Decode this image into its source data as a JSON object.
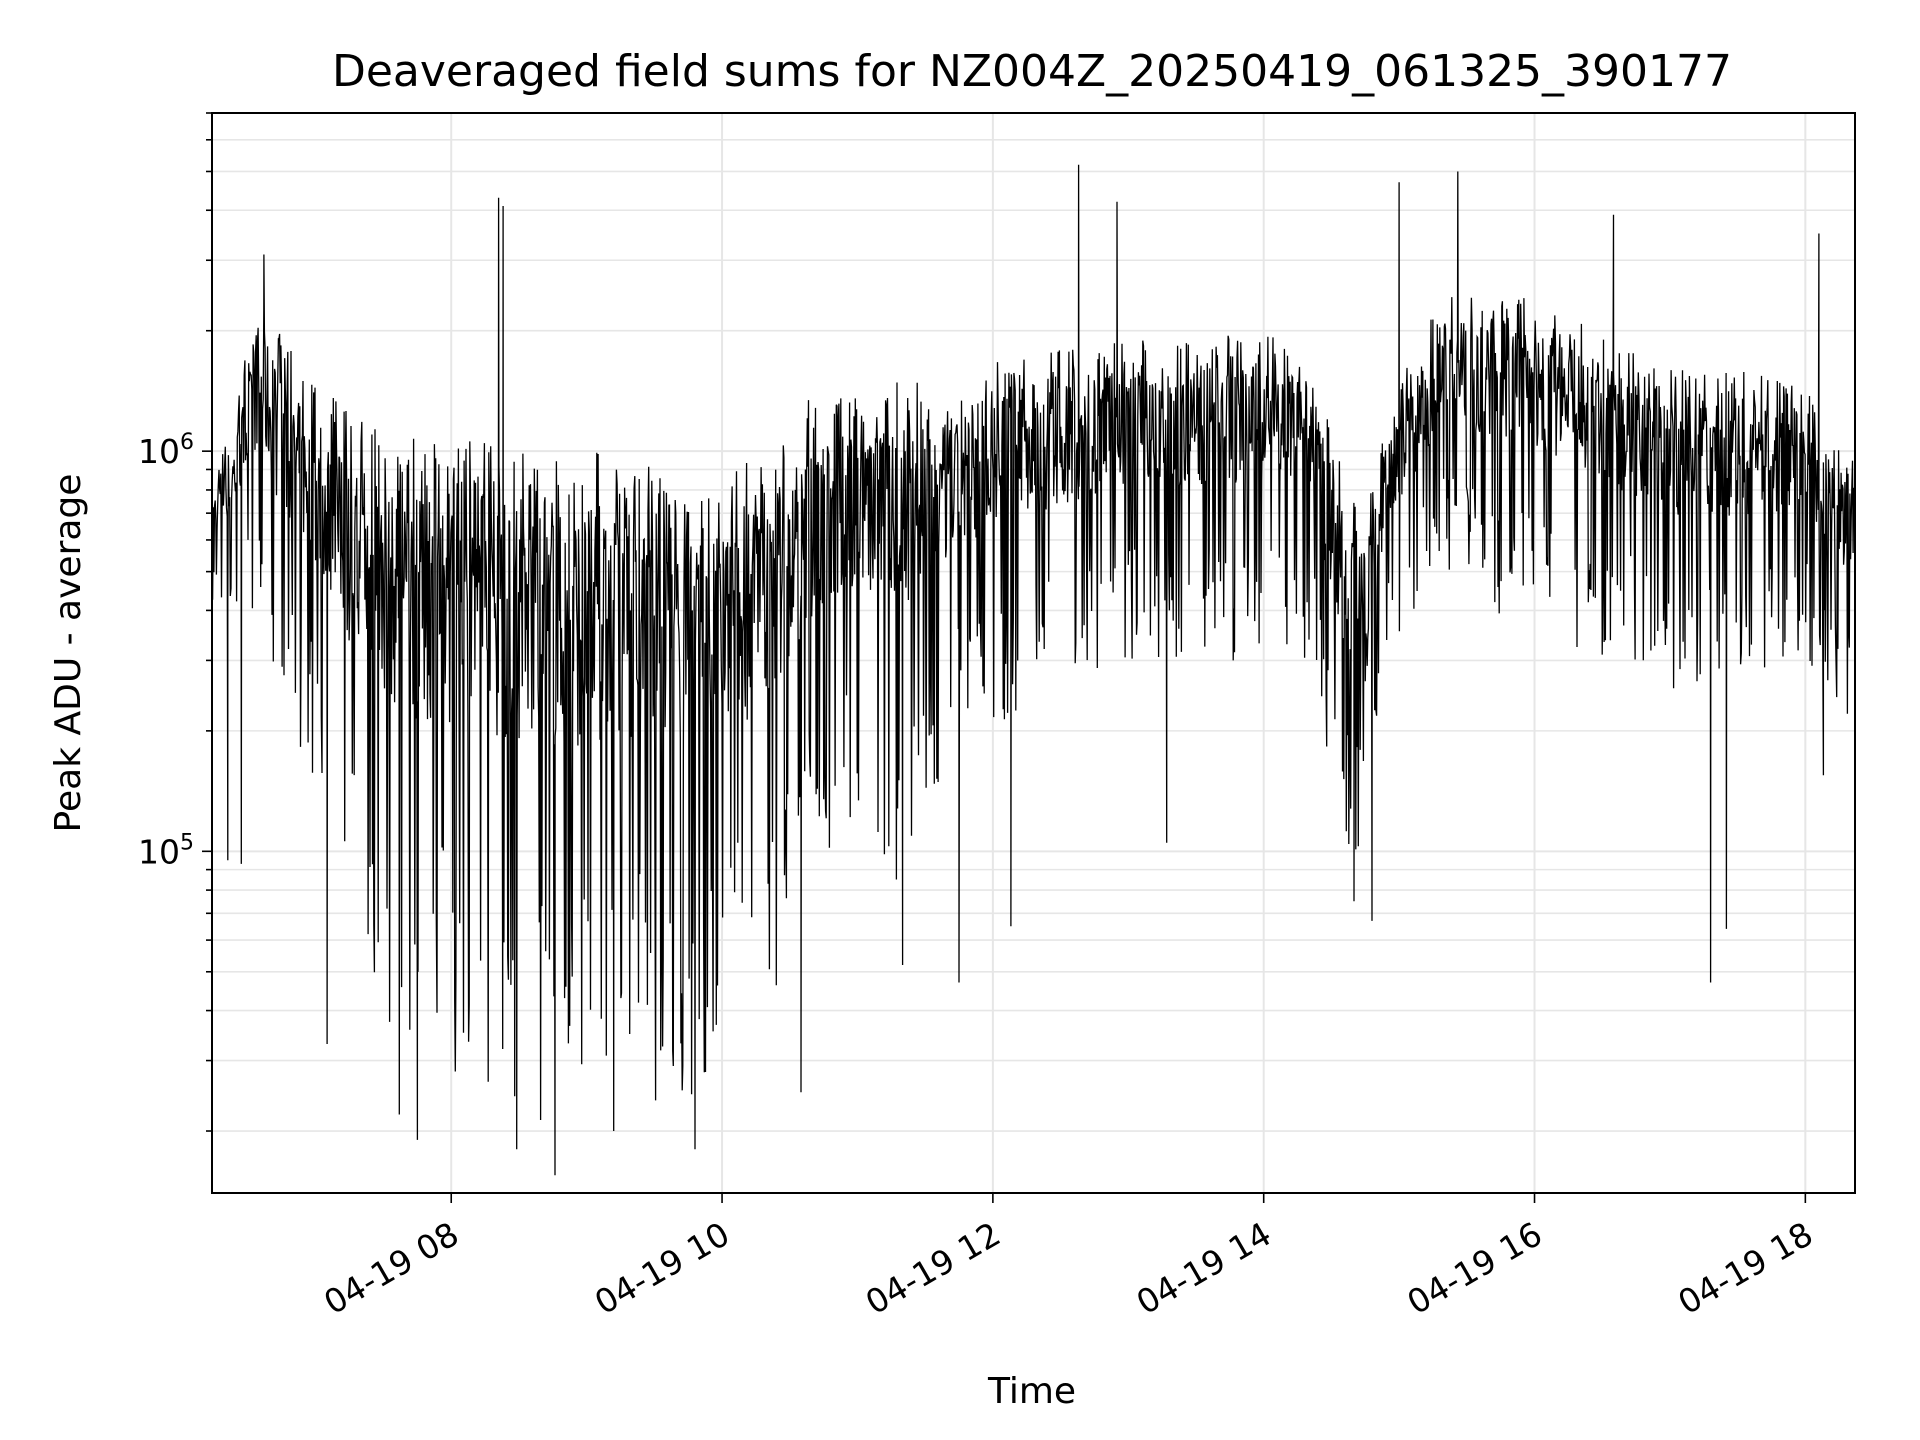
{
  "chart_data": {
    "type": "line",
    "title": "Deaveraged field sums for NZ004Z_20250419_061325_390177",
    "xlabel": "Time",
    "ylabel": "Peak ADU - average",
    "x_range": [
      "2025-04-19 06:14",
      "2025-04-19 18:22"
    ],
    "y_scale": "log",
    "ylim": [
      14000,
      7000000
    ],
    "grid": true,
    "line_color": "#000000",
    "x_ticks": [
      {
        "value": "2025-04-19 08:00",
        "label": "04-19 08"
      },
      {
        "value": "2025-04-19 10:00",
        "label": "04-19 10"
      },
      {
        "value": "2025-04-19 12:00",
        "label": "04-19 12"
      },
      {
        "value": "2025-04-19 14:00",
        "label": "04-19 14"
      },
      {
        "value": "2025-04-19 16:00",
        "label": "04-19 16"
      },
      {
        "value": "2025-04-19 18:00",
        "label": "04-19 18"
      }
    ],
    "y_ticks": [
      {
        "value": 100000,
        "base": "10",
        "exp": "5"
      },
      {
        "value": 1000000,
        "base": "10",
        "exp": "6"
      }
    ],
    "series": [
      {
        "envelope": [
          {
            "t": "2025-04-19 06:15",
            "upper": 900000,
            "lower": 400000
          },
          {
            "t": "2025-04-19 06:25",
            "upper": 1300000,
            "lower": 350000
          },
          {
            "t": "2025-04-19 06:35",
            "upper": 2700000,
            "lower": 350000
          },
          {
            "t": "2025-04-19 06:45",
            "upper": 1900000,
            "lower": 200000
          },
          {
            "t": "2025-04-19 07:00",
            "upper": 1500000,
            "lower": 150000
          },
          {
            "t": "2025-04-19 07:20",
            "upper": 1200000,
            "lower": 50000
          },
          {
            "t": "2025-04-19 07:40",
            "upper": 1100000,
            "lower": 30000
          },
          {
            "t": "2025-04-19 08:00",
            "upper": 1100000,
            "lower": 28000
          },
          {
            "t": "2025-04-19 08:20",
            "upper": 1050000,
            "lower": 25000
          },
          {
            "t": "2025-04-19 08:40",
            "upper": 1050000,
            "lower": 20000
          },
          {
            "t": "2025-04-19 09:00",
            "upper": 1100000,
            "lower": 22000
          },
          {
            "t": "2025-04-19 09:20",
            "upper": 1000000,
            "lower": 25000
          },
          {
            "t": "2025-04-19 09:40",
            "upper": 800000,
            "lower": 22000
          },
          {
            "t": "2025-04-19 10:00",
            "upper": 900000,
            "lower": 30000
          },
          {
            "t": "2025-04-19 10:20",
            "upper": 1000000,
            "lower": 40000
          },
          {
            "t": "2025-04-19 10:40",
            "upper": 1400000,
            "lower": 80000
          },
          {
            "t": "2025-04-19 11:00",
            "upper": 1400000,
            "lower": 120000
          },
          {
            "t": "2025-04-19 11:20",
            "upper": 1500000,
            "lower": 70000
          },
          {
            "t": "2025-04-19 11:40",
            "upper": 1500000,
            "lower": 150000
          },
          {
            "t": "2025-04-19 12:00",
            "upper": 1700000,
            "lower": 200000
          },
          {
            "t": "2025-04-19 12:30",
            "upper": 1800000,
            "lower": 250000
          },
          {
            "t": "2025-04-19 13:00",
            "upper": 1900000,
            "lower": 300000
          },
          {
            "t": "2025-04-19 13:30",
            "upper": 1900000,
            "lower": 300000
          },
          {
            "t": "2025-04-19 14:00",
            "upper": 2000000,
            "lower": 300000
          },
          {
            "t": "2025-04-19 14:20",
            "upper": 1800000,
            "lower": 300000
          },
          {
            "t": "2025-04-19 14:35",
            "upper": 900000,
            "lower": 100000
          },
          {
            "t": "2025-04-19 14:45",
            "upper": 700000,
            "lower": 80000
          },
          {
            "t": "2025-04-19 14:55",
            "upper": 1300000,
            "lower": 300000
          },
          {
            "t": "2025-04-19 15:20",
            "upper": 2500000,
            "lower": 500000
          },
          {
            "t": "2025-04-19 15:40",
            "upper": 2500000,
            "lower": 400000
          },
          {
            "t": "2025-04-19 16:00",
            "upper": 2400000,
            "lower": 350000
          },
          {
            "t": "2025-04-19 16:30",
            "upper": 2000000,
            "lower": 300000
          },
          {
            "t": "2025-04-19 17:00",
            "upper": 1600000,
            "lower": 250000
          },
          {
            "t": "2025-04-19 17:30",
            "upper": 1600000,
            "lower": 250000
          },
          {
            "t": "2025-04-19 18:00",
            "upper": 1500000,
            "lower": 300000
          },
          {
            "t": "2025-04-19 18:20",
            "upper": 1000000,
            "lower": 200000
          }
        ],
        "spikes": [
          {
            "t": "2025-04-19 06:21",
            "value": 95000
          },
          {
            "t": "2025-04-19 06:27",
            "value": 93000
          },
          {
            "t": "2025-04-19 06:37",
            "value": 3100000
          },
          {
            "t": "2025-04-19 07:05",
            "value": 33000
          },
          {
            "t": "2025-04-19 07:37",
            "value": 22000
          },
          {
            "t": "2025-04-19 07:45",
            "value": 19000
          },
          {
            "t": "2025-04-19 08:21",
            "value": 4300000
          },
          {
            "t": "2025-04-19 08:23",
            "value": 4100000
          },
          {
            "t": "2025-04-19 08:29",
            "value": 18000
          },
          {
            "t": "2025-04-19 08:46",
            "value": 15500
          },
          {
            "t": "2025-04-19 09:12",
            "value": 20000
          },
          {
            "t": "2025-04-19 09:48",
            "value": 18000
          },
          {
            "t": "2025-04-19 10:35",
            "value": 25000
          },
          {
            "t": "2025-04-19 11:20",
            "value": 52000
          },
          {
            "t": "2025-04-19 11:45",
            "value": 47000
          },
          {
            "t": "2025-04-19 12:08",
            "value": 65000
          },
          {
            "t": "2025-04-19 12:38",
            "value": 5200000
          },
          {
            "t": "2025-04-19 12:55",
            "value": 4200000
          },
          {
            "t": "2025-04-19 13:17",
            "value": 105000
          },
          {
            "t": "2025-04-19 14:40",
            "value": 75000
          },
          {
            "t": "2025-04-19 14:48",
            "value": 67000
          },
          {
            "t": "2025-04-19 15:00",
            "value": 4700000
          },
          {
            "t": "2025-04-19 15:26",
            "value": 5000000
          },
          {
            "t": "2025-04-19 16:35",
            "value": 3900000
          },
          {
            "t": "2025-04-19 17:18",
            "value": 47000
          },
          {
            "t": "2025-04-19 17:25",
            "value": 64000
          },
          {
            "t": "2025-04-19 18:06",
            "value": 3500000
          },
          {
            "t": "2025-04-19 18:08",
            "value": 155000
          }
        ]
      }
    ]
  }
}
